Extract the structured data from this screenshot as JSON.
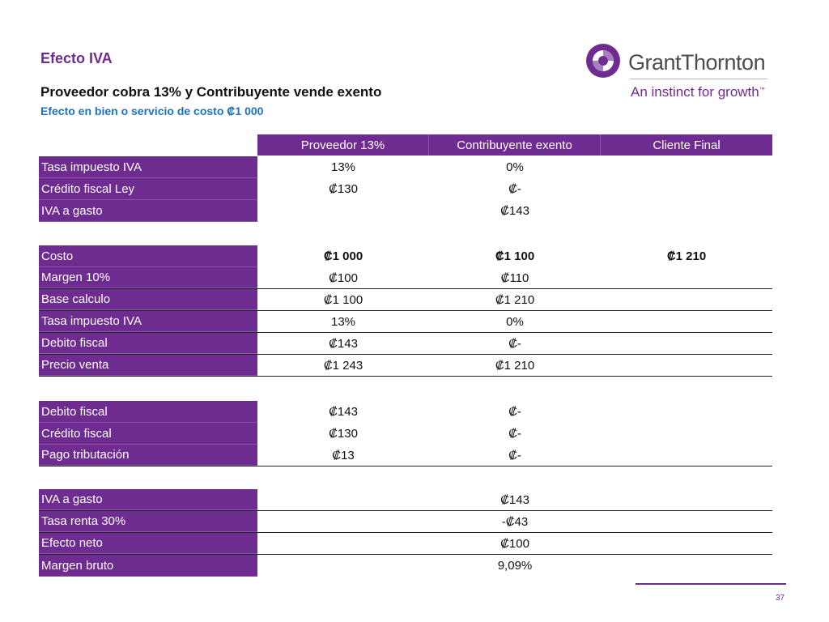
{
  "title": "Efecto IVA",
  "subtitle": "Proveedor cobra 13% y Contribuyente vende exento",
  "subnote": "Efecto en bien o servicio de costo ₡1 000",
  "logo": {
    "name": "GrantThornton",
    "tagline": "An instinct for growth",
    "tm": "™",
    "color": "#6e2c91"
  },
  "columns": [
    "Proveedor 13%",
    "Contribuyente exento",
    "Cliente Final"
  ],
  "section1": [
    {
      "label": "Tasa impuesto IVA",
      "v1": "13%",
      "v2": "0%",
      "v3": ""
    },
    {
      "label": "Crédito fiscal Ley",
      "v1": "₡130",
      "v2": "₡-",
      "v3": ""
    },
    {
      "label": "IVA a gasto",
      "v1": "",
      "v2": "₡143",
      "v3": ""
    }
  ],
  "section2": [
    {
      "label": "Costo",
      "v1": "₡1 000",
      "v2": "₡1 100",
      "v3": "₡1 210"
    },
    {
      "label": "Margen 10%",
      "v1": "₡100",
      "v2": "₡110",
      "v3": ""
    },
    {
      "label": "Base calculo",
      "v1": "₡1 100",
      "v2": "₡1 210",
      "v3": ""
    },
    {
      "label": "Tasa impuesto IVA",
      "v1": "13%",
      "v2": "0%",
      "v3": ""
    },
    {
      "label": "Debito fiscal",
      "v1": "₡143",
      "v2": "₡-",
      "v3": ""
    },
    {
      "label": "Precio venta",
      "v1": "₡1 243",
      "v2": "₡1 210",
      "v3": ""
    }
  ],
  "section3": [
    {
      "label": "Debito fiscal",
      "v1": "₡143",
      "v2": "₡-",
      "v3": ""
    },
    {
      "label": "Crédito fiscal",
      "v1": "₡130",
      "v2": "₡-",
      "v3": ""
    },
    {
      "label": "Pago tributación",
      "v1": "₡13",
      "v2": "₡-",
      "v3": ""
    }
  ],
  "section4": [
    {
      "label": "IVA a gasto",
      "v1": "",
      "v2": "₡143",
      "v3": ""
    },
    {
      "label": "Tasa renta 30%",
      "v1": "",
      "v2": "-₡43",
      "v3": ""
    },
    {
      "label": "Efecto neto",
      "v1": "",
      "v2": "₡100",
      "v3": ""
    },
    {
      "label": "Margen bruto",
      "v1": "",
      "v2": "9,09%",
      "v3": ""
    }
  ],
  "page_number": "37"
}
